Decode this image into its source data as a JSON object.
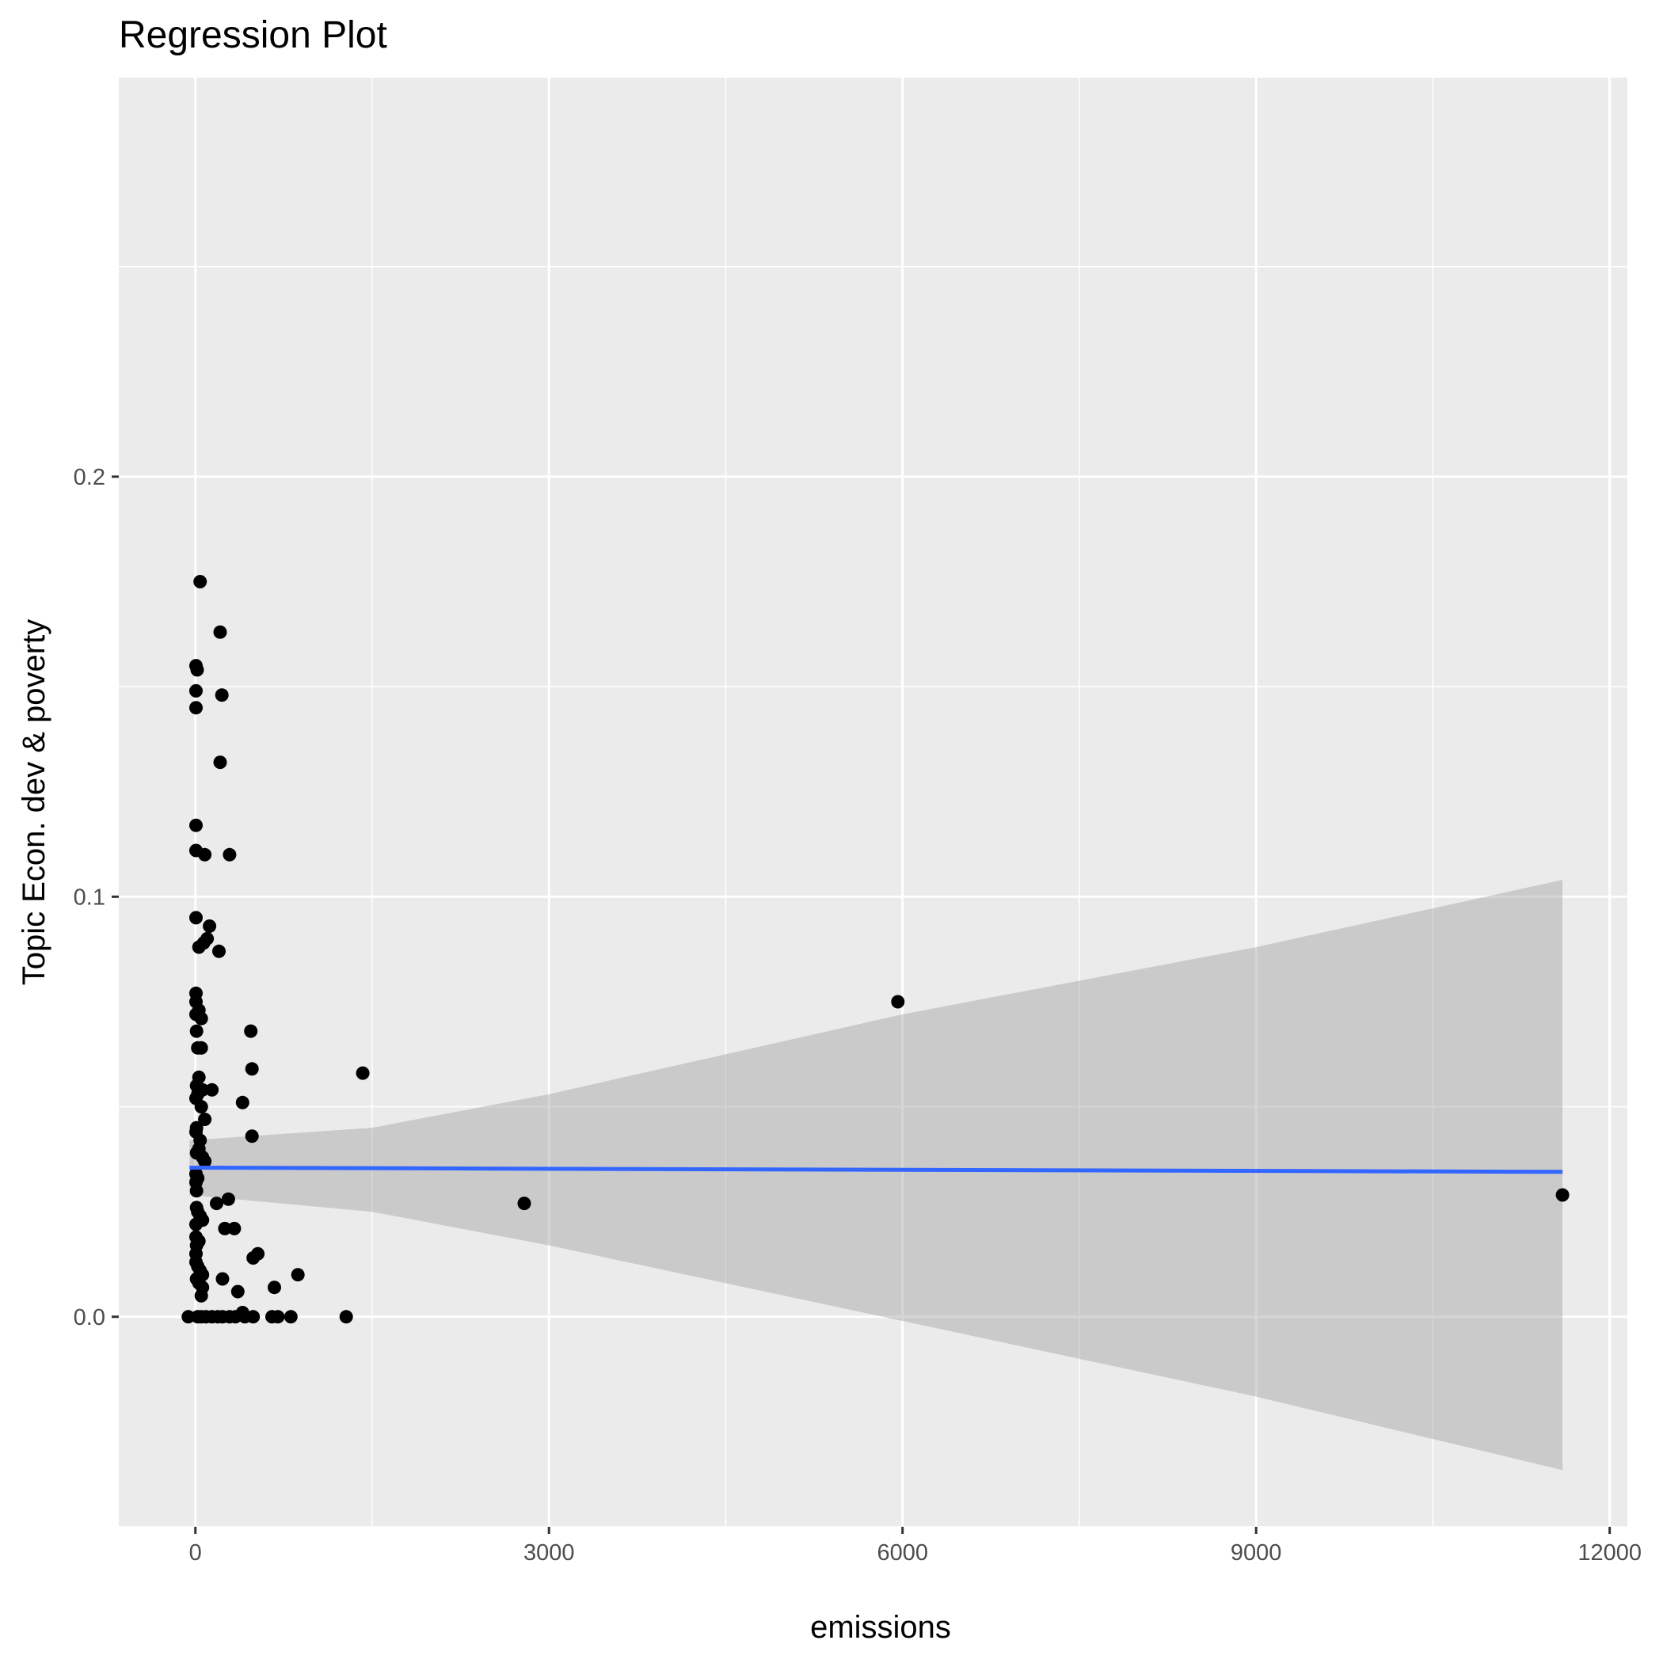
{
  "chart_data": {
    "type": "scatter",
    "title": "Regression Plot",
    "xlabel": "emissions",
    "ylabel": "Topic Econ. dev & poverty",
    "xlim": [
      -650,
      12150
    ],
    "ylim": [
      -0.05,
      0.295
    ],
    "x_ticks": [
      0,
      3000,
      6000,
      9000,
      12000
    ],
    "x_tick_labels": [
      "0",
      "3000",
      "6000",
      "9000",
      "12000"
    ],
    "y_ticks": [
      0.0,
      0.1,
      0.2
    ],
    "y_tick_labels": [
      "0.0",
      "0.1",
      "0.2"
    ],
    "grid": true,
    "legend": "none",
    "colors": {
      "panel": "#ebebeb",
      "gridline": "#ffffff",
      "point": "#000000",
      "fit_line": "#3366ff",
      "ribbon": "#999999"
    },
    "points": [
      [
        40,
        0.175
      ],
      [
        210,
        0.163
      ],
      [
        5,
        0.155
      ],
      [
        15,
        0.154
      ],
      [
        5,
        0.149
      ],
      [
        225,
        0.148
      ],
      [
        5,
        0.145
      ],
      [
        210,
        0.132
      ],
      [
        5,
        0.117
      ],
      [
        5,
        0.111
      ],
      [
        80,
        0.11
      ],
      [
        290,
        0.11
      ],
      [
        5,
        0.095
      ],
      [
        120,
        0.093
      ],
      [
        100,
        0.09
      ],
      [
        70,
        0.089
      ],
      [
        30,
        0.088
      ],
      [
        200,
        0.087
      ],
      [
        5,
        0.077
      ],
      [
        5,
        0.075
      ],
      [
        30,
        0.073
      ],
      [
        5,
        0.072
      ],
      [
        50,
        0.071
      ],
      [
        470,
        0.068
      ],
      [
        10,
        0.068
      ],
      [
        20,
        0.064
      ],
      [
        50,
        0.064
      ],
      [
        480,
        0.059
      ],
      [
        30,
        0.057
      ],
      [
        10,
        0.055
      ],
      [
        140,
        0.054
      ],
      [
        60,
        0.054
      ],
      [
        20,
        0.053
      ],
      [
        5,
        0.052
      ],
      [
        400,
        0.051
      ],
      [
        50,
        0.05
      ],
      [
        80,
        0.047
      ],
      [
        10,
        0.045
      ],
      [
        5,
        0.044
      ],
      [
        480,
        0.043
      ],
      [
        40,
        0.042
      ],
      [
        30,
        0.04
      ],
      [
        10,
        0.039
      ],
      [
        60,
        0.038
      ],
      [
        80,
        0.037
      ],
      [
        5,
        0.034
      ],
      [
        20,
        0.033
      ],
      [
        5,
        0.032
      ],
      [
        10,
        0.03
      ],
      [
        280,
        0.028
      ],
      [
        180,
        0.027
      ],
      [
        10,
        0.026
      ],
      [
        20,
        0.025
      ],
      [
        40,
        0.024
      ],
      [
        60,
        0.023
      ],
      [
        5,
        0.022
      ],
      [
        250,
        0.021
      ],
      [
        330,
        0.021
      ],
      [
        5,
        0.019
      ],
      [
        30,
        0.018
      ],
      [
        10,
        0.017
      ],
      [
        5,
        0.015
      ],
      [
        530,
        0.015
      ],
      [
        490,
        0.014
      ],
      [
        5,
        0.013
      ],
      [
        20,
        0.012
      ],
      [
        40,
        0.011
      ],
      [
        60,
        0.01
      ],
      [
        870,
        0.01
      ],
      [
        10,
        0.009
      ],
      [
        230,
        0.009
      ],
      [
        30,
        0.008
      ],
      [
        670,
        0.007
      ],
      [
        60,
        0.007
      ],
      [
        360,
        0.006
      ],
      [
        50,
        0.005
      ],
      [
        400,
        0.001
      ],
      [
        -60,
        0.0
      ],
      [
        20,
        0.0
      ],
      [
        50,
        0.0
      ],
      [
        90,
        0.0
      ],
      [
        140,
        0.0
      ],
      [
        190,
        0.0
      ],
      [
        230,
        0.0
      ],
      [
        290,
        0.0
      ],
      [
        340,
        0.0
      ],
      [
        420,
        0.0
      ],
      [
        490,
        0.0
      ],
      [
        650,
        0.0
      ],
      [
        700,
        0.0
      ],
      [
        810,
        0.0
      ],
      [
        1280,
        0.0
      ],
      [
        1420,
        0.058
      ],
      [
        2790,
        0.027
      ],
      [
        5960,
        0.075
      ],
      [
        11600,
        0.029
      ]
    ],
    "fit_line": [
      [
        -50,
        0.0355
      ],
      [
        11600,
        0.0345
      ]
    ],
    "confidence_band": {
      "upper": [
        [
          -50,
          0.042
        ],
        [
          1500,
          0.045
        ],
        [
          3000,
          0.053
        ],
        [
          6000,
          0.072
        ],
        [
          9000,
          0.088
        ],
        [
          11600,
          0.104
        ]
      ],
      "lower": [
        [
          -50,
          0.029
        ],
        [
          1500,
          0.025
        ],
        [
          3000,
          0.017
        ],
        [
          6000,
          -0.001
        ],
        [
          9000,
          -0.019
        ],
        [
          11600,
          -0.0365
        ]
      ]
    }
  }
}
